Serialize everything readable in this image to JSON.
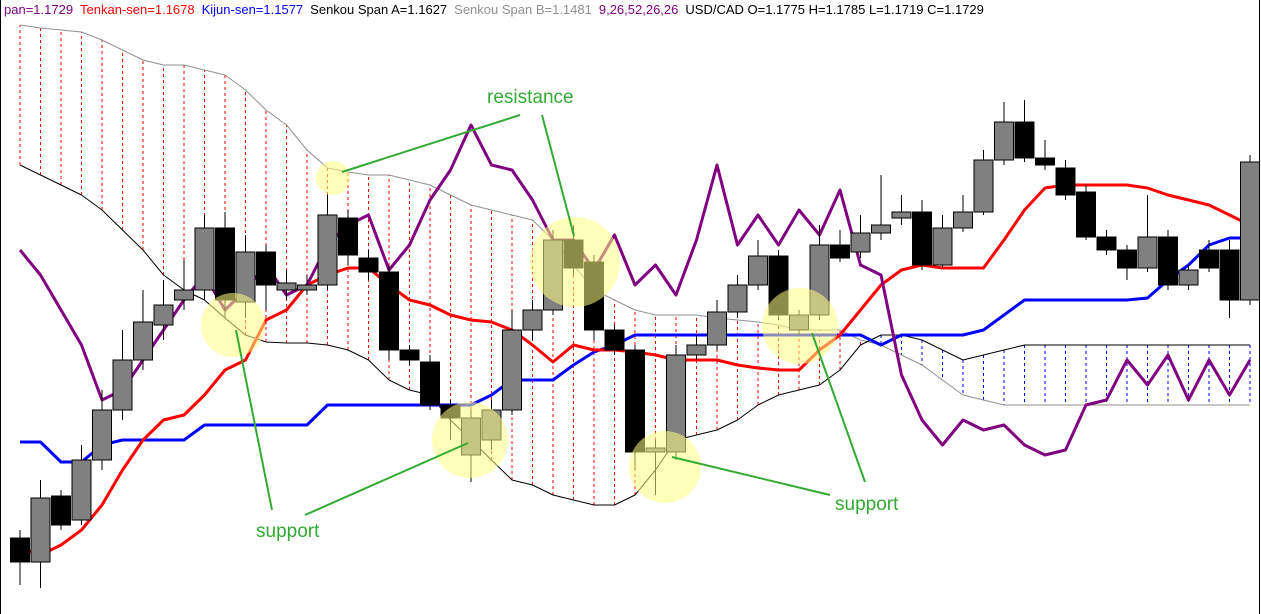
{
  "chart_data": {
    "type": "candlestick",
    "header": [
      {
        "text": "pan=1.1729",
        "color": "#800080"
      },
      {
        "text": "Tenkan-sen=1.1678",
        "color": "#ff0000"
      },
      {
        "text": "Kijun-sen=1.1577",
        "color": "#0000ff"
      },
      {
        "text": "Senkou Span A=1.1627",
        "color": "#000000"
      },
      {
        "text": "Senkou Span B=1.1481",
        "color": "#909090"
      },
      {
        "text": "9,26,52,26,26",
        "color": "#800080"
      },
      {
        "text": "USD/CAD O=1.1775 H=1.1785 L=1.1719 C=1.1729",
        "color": "#000000"
      }
    ],
    "annotations": [
      "resistance",
      "support",
      "support"
    ],
    "ylim": [
      1.1386,
      1.2
    ],
    "up_color": "#808080",
    "down_color": "#000000",
    "cloud_colors": {
      "bearish": "#ff0000",
      "bullish": "#0000ff"
    },
    "open": [
      1.1462,
      1.1438,
      1.1504,
      1.148,
      1.154,
      1.159,
      1.164,
      1.1675,
      1.17,
      1.171,
      1.1772,
      1.1698,
      1.1748,
      1.171,
      1.171,
      1.1715,
      1.1782,
      1.1742,
      1.1728,
      1.165,
      1.1638,
      1.1595,
      1.1545,
      1.156,
      1.159,
      1.167,
      1.169,
      1.176,
      1.1738,
      1.167,
      1.165,
      1.1548,
      1.1548,
      1.1645,
      1.1655,
      1.1688,
      1.1715,
      1.1744,
      1.167,
      1.1685,
      1.1755,
      1.1748,
      1.1767,
      1.1782,
      1.1788,
      1.1735,
      1.1772,
      1.1788,
      1.184,
      1.1878,
      1.1842,
      1.1832,
      1.1808,
      1.1763,
      1.175,
      1.1732,
      1.1763,
      1.1715,
      1.175,
      1.175,
      1.17
    ],
    "high": [
      1.147,
      1.152,
      1.151,
      1.1555,
      1.161,
      1.167,
      1.171,
      1.172,
      1.174,
      1.1785,
      1.1788,
      1.1765,
      1.1755,
      1.173,
      1.1725,
      1.1805,
      1.179,
      1.175,
      1.1735,
      1.1655,
      1.1645,
      1.16,
      1.159,
      1.16,
      1.169,
      1.17,
      1.177,
      1.1775,
      1.1745,
      1.1675,
      1.1655,
      1.156,
      1.1655,
      1.1665,
      1.17,
      1.1725,
      1.176,
      1.175,
      1.169,
      1.1775,
      1.177,
      1.1785,
      1.1825,
      1.1805,
      1.18,
      1.1785,
      1.1805,
      1.185,
      1.1898,
      1.19,
      1.186,
      1.184,
      1.1815,
      1.177,
      1.1755,
      1.1805,
      1.177,
      1.1735,
      1.176,
      1.176,
      1.1845
    ],
    "low": [
      1.1415,
      1.1412,
      1.147,
      1.1475,
      1.153,
      1.158,
      1.163,
      1.166,
      1.169,
      1.17,
      1.1682,
      1.1682,
      1.169,
      1.17,
      1.1705,
      1.171,
      1.1735,
      1.172,
      1.164,
      1.1635,
      1.159,
      1.156,
      1.1518,
      1.155,
      1.1585,
      1.166,
      1.1685,
      1.1725,
      1.166,
      1.1645,
      1.153,
      1.1505,
      1.154,
      1.164,
      1.165,
      1.1682,
      1.171,
      1.168,
      1.1665,
      1.168,
      1.1738,
      1.1742,
      1.176,
      1.1775,
      1.173,
      1.1732,
      1.1768,
      1.1785,
      1.1835,
      1.1838,
      1.183,
      1.18,
      1.176,
      1.1745,
      1.172,
      1.1728,
      1.171,
      1.171,
      1.1728,
      1.1682,
      1.1695
    ],
    "close": [
      1.1438,
      1.1502,
      1.1475,
      1.154,
      1.159,
      1.164,
      1.1678,
      1.1695,
      1.171,
      1.1772,
      1.17,
      1.1748,
      1.1715,
      1.1717,
      1.1715,
      1.1785,
      1.1745,
      1.1728,
      1.165,
      1.164,
      1.1595,
      1.1582,
      1.1582,
      1.159,
      1.167,
      1.169,
      1.176,
      1.1732,
      1.167,
      1.165,
      1.1548,
      1.1552,
      1.1645,
      1.1655,
      1.1688,
      1.1715,
      1.1744,
      1.1685,
      1.1685,
      1.1755,
      1.1742,
      1.1767,
      1.1775,
      1.1788,
      1.1735,
      1.1772,
      1.1788,
      1.184,
      1.1878,
      1.1842,
      1.1835,
      1.1805,
      1.1763,
      1.175,
      1.1732,
      1.1763,
      1.1715,
      1.173,
      1.1732,
      1.17,
      1.1838
    ],
    "series": [
      {
        "name": "Senkou Span B",
        "color": "#909090",
        "role": "spanB",
        "values": [
          1.1975,
          1.1972,
          1.197,
          1.1968,
          1.196,
          1.195,
          1.194,
          1.1935,
          1.1935,
          1.193,
          1.1925,
          1.191,
          1.189,
          1.1875,
          1.185,
          1.1832,
          1.1828,
          1.1825,
          1.1825,
          1.182,
          1.1815,
          1.1805,
          1.1795,
          1.179,
          1.1785,
          1.178,
          1.176,
          1.1735,
          1.171,
          1.17,
          1.169,
          1.1685,
          1.1685,
          1.1685,
          1.1682,
          1.168,
          1.1678,
          1.1675,
          1.167,
          1.167,
          1.167,
          1.166,
          1.1655,
          1.1645,
          1.1635,
          1.162,
          1.1605,
          1.16,
          1.1595,
          1.1595,
          1.1595,
          1.1595,
          1.1595,
          1.1595,
          1.1595,
          1.1595,
          1.1595,
          1.1595,
          1.1595,
          1.1595,
          1.1595
        ]
      },
      {
        "name": "Senkou Span A",
        "color": "#000000",
        "role": "spanA",
        "values": [
          1.1835,
          1.1825,
          1.1815,
          1.1805,
          1.179,
          1.177,
          1.175,
          1.1725,
          1.171,
          1.17,
          1.1682,
          1.1665,
          1.1658,
          1.1657,
          1.1657,
          1.1655,
          1.165,
          1.164,
          1.162,
          1.161,
          1.1605,
          1.158,
          1.156,
          1.154,
          1.152,
          1.1515,
          1.1505,
          1.15,
          1.1495,
          1.1495,
          1.1505,
          1.153,
          1.156,
          1.1565,
          1.157,
          1.158,
          1.1595,
          1.1605,
          1.161,
          1.1615,
          1.163,
          1.1655,
          1.1665,
          1.1665,
          1.166,
          1.165,
          1.164,
          1.1645,
          1.165,
          1.1655,
          1.1655,
          1.1655,
          1.1655,
          1.1655,
          1.1655,
          1.1655,
          1.1655,
          1.1655,
          1.1655,
          1.1655,
          1.1655
        ]
      },
      {
        "name": "Kijun-sen",
        "color": "#0000ff",
        "role": "line",
        "values": [
          1.1558,
          1.1558,
          1.1538,
          1.1538,
          1.1555,
          1.156,
          1.156,
          1.156,
          1.156,
          1.1575,
          1.1575,
          1.1575,
          1.1575,
          1.1575,
          1.1575,
          1.1595,
          1.1595,
          1.1595,
          1.1595,
          1.1595,
          1.1595,
          1.1595,
          1.1595,
          1.1605,
          1.162,
          1.162,
          1.162,
          1.1635,
          1.1648,
          1.1655,
          1.1665,
          1.1665,
          1.1665,
          1.1665,
          1.1665,
          1.1665,
          1.1665,
          1.1665,
          1.1665,
          1.1665,
          1.1665,
          1.1665,
          1.1655,
          1.1665,
          1.1665,
          1.1665,
          1.1665,
          1.167,
          1.1685,
          1.17,
          1.17,
          1.17,
          1.17,
          1.17,
          1.17,
          1.1702,
          1.172,
          1.1735,
          1.1755,
          1.1762,
          1.1762
        ]
      },
      {
        "name": "Tenkan-sen",
        "color": "#ff0000",
        "role": "line",
        "values": [
          1.1452,
          1.1445,
          1.1455,
          1.147,
          1.1495,
          1.153,
          1.156,
          1.158,
          1.1585,
          1.1605,
          1.163,
          1.164,
          1.168,
          1.169,
          1.1715,
          1.1725,
          1.1732,
          1.1732,
          1.1715,
          1.17,
          1.1695,
          1.1685,
          1.168,
          1.1678,
          1.167,
          1.1655,
          1.1638,
          1.1655,
          1.165,
          1.165,
          1.1648,
          1.1645,
          1.164,
          1.164,
          1.164,
          1.1635,
          1.1632,
          1.163,
          1.163,
          1.165,
          1.1665,
          1.169,
          1.1715,
          1.173,
          1.1735,
          1.1732,
          1.1732,
          1.1732,
          1.176,
          1.179,
          1.1812,
          1.1815,
          1.1815,
          1.1815,
          1.1815,
          1.1812,
          1.1805,
          1.18,
          1.1795,
          1.1785,
          1.1775
        ]
      },
      {
        "name": "Chikou Span",
        "color": "#800080",
        "role": "line",
        "values": [
          1.175,
          1.1725,
          1.169,
          1.1655,
          1.16,
          1.161,
          1.164,
          1.167,
          1.17,
          1.1725,
          1.169,
          1.171,
          1.1735,
          1.1705,
          1.1715,
          1.1755,
          1.1775,
          1.1785,
          1.173,
          1.1755,
          1.18,
          1.183,
          1.1875,
          1.1835,
          1.183,
          1.18,
          1.176,
          1.176,
          1.173,
          1.1765,
          1.1715,
          1.1735,
          1.1705,
          1.176,
          1.1835,
          1.1755,
          1.1785,
          1.1755,
          1.179,
          1.1765,
          1.181,
          1.1735,
          1.1725,
          1.1625,
          1.158,
          1.1555,
          1.158,
          1.157,
          1.1575,
          1.1555,
          1.1545,
          1.155,
          1.1595,
          1.16,
          1.164,
          1.1615,
          1.1645,
          1.16,
          1.164,
          1.1605,
          1.164
        ]
      }
    ]
  }
}
